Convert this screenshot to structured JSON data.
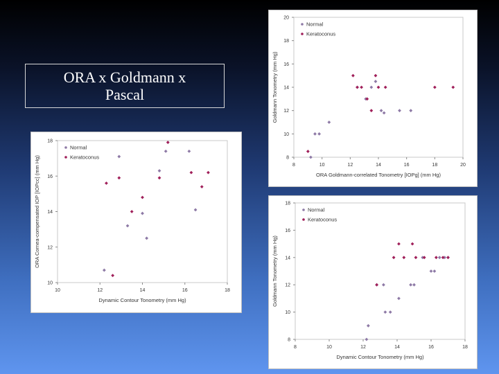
{
  "title": "ORA x Goldmann x Pascal",
  "series_colors": {
    "Normal": "#8e7aa6",
    "Keratoconus": "#a0205a"
  },
  "chart_data": [
    {
      "type": "scatter",
      "xlabel": "ORA Goldmann-correlated Tonometry [IOPg] (mm Hg)",
      "ylabel": "Goldmann Tonometry (mm Hg)",
      "xlim": [
        8,
        20
      ],
      "ylim": [
        8,
        20
      ],
      "xticks": [
        "8",
        "10",
        "12",
        "14",
        "16",
        "18",
        "20"
      ],
      "yticks": [
        "8",
        "10",
        "12",
        "14",
        "16",
        "18",
        "20"
      ],
      "legend": "top-left",
      "grid": false,
      "series": [
        {
          "name": "Normal",
          "points": [
            [
              9.2,
              8.0
            ],
            [
              9.5,
              10.0
            ],
            [
              9.8,
              10.0
            ],
            [
              10.5,
              11.0
            ],
            [
              12.5,
              14.0
            ],
            [
              13.1,
              13.0
            ],
            [
              13.5,
              14.0
            ],
            [
              13.8,
              14.5
            ],
            [
              14.2,
              12.0
            ],
            [
              14.4,
              11.8
            ],
            [
              15.5,
              12.0
            ],
            [
              16.3,
              12.0
            ]
          ]
        },
        {
          "name": "Keratoconus",
          "points": [
            [
              9.0,
              8.5
            ],
            [
              12.2,
              15.0
            ],
            [
              12.5,
              14.0
            ],
            [
              12.8,
              14.0
            ],
            [
              13.2,
              13.0
            ],
            [
              13.5,
              12.0
            ],
            [
              13.8,
              15.0
            ],
            [
              14.0,
              14.0
            ],
            [
              14.5,
              14.0
            ],
            [
              18.0,
              14.0
            ],
            [
              19.3,
              14.0
            ]
          ]
        }
      ]
    },
    {
      "type": "scatter",
      "xlabel": "Dynamic Contour Tonometry (mm Hg)",
      "ylabel": "ORA Cornea-compensated IOP [IOPcc] (mm Hg)",
      "xlim": [
        10,
        18
      ],
      "ylim": [
        10,
        18
      ],
      "xticks": [
        "10",
        "12",
        "14",
        "16",
        "18"
      ],
      "yticks": [
        "10",
        "12",
        "14",
        "16",
        "18"
      ],
      "legend": "top-left",
      "grid": false,
      "series": [
        {
          "name": "Normal",
          "points": [
            [
              12.2,
              10.7
            ],
            [
              12.9,
              17.1
            ],
            [
              13.3,
              13.2
            ],
            [
              14.0,
              13.9
            ],
            [
              14.2,
              12.5
            ],
            [
              14.8,
              16.3
            ],
            [
              15.1,
              17.4
            ],
            [
              16.2,
              17.4
            ],
            [
              16.5,
              14.1
            ]
          ]
        },
        {
          "name": "Keratoconus",
          "points": [
            [
              12.3,
              15.6
            ],
            [
              12.6,
              10.4
            ],
            [
              12.9,
              15.9
            ],
            [
              13.5,
              14.0
            ],
            [
              14.0,
              14.8
            ],
            [
              14.8,
              15.9
            ],
            [
              15.2,
              17.9
            ],
            [
              16.3,
              16.2
            ],
            [
              16.8,
              15.4
            ],
            [
              17.1,
              16.2
            ]
          ]
        }
      ]
    },
    {
      "type": "scatter",
      "xlabel": "Dynamic Contour Tonometry (mm Hg)",
      "ylabel": "Goldmann Tonometry (mm Hg)",
      "xlim": [
        8,
        18
      ],
      "ylim": [
        8,
        18
      ],
      "xticks": [
        "8",
        "10",
        "12",
        "14",
        "16",
        "18"
      ],
      "yticks": [
        "8",
        "10",
        "12",
        "14",
        "16",
        "18"
      ],
      "legend": "top-left",
      "grid": false,
      "series": [
        {
          "name": "Normal",
          "points": [
            [
              12.2,
              8.0
            ],
            [
              12.3,
              9.0
            ],
            [
              12.8,
              12.0
            ],
            [
              13.2,
              12.0
            ],
            [
              13.3,
              10.0
            ],
            [
              13.6,
              10.0
            ],
            [
              14.1,
              11.0
            ],
            [
              14.8,
              12.0
            ],
            [
              15.0,
              12.0
            ],
            [
              15.5,
              14.0
            ],
            [
              16.0,
              13.0
            ],
            [
              16.2,
              13.0
            ],
            [
              16.5,
              14.0
            ],
            [
              16.8,
              14.0
            ],
            [
              17.0,
              14.0
            ]
          ]
        },
        {
          "name": "Keratoconus",
          "points": [
            [
              12.8,
              12.0
            ],
            [
              13.8,
              14.0
            ],
            [
              14.1,
              15.0
            ],
            [
              14.4,
              14.0
            ],
            [
              14.9,
              15.0
            ],
            [
              15.1,
              14.0
            ],
            [
              15.6,
              14.0
            ],
            [
              16.3,
              14.0
            ],
            [
              16.7,
              14.0
            ],
            [
              17.0,
              14.0
            ]
          ]
        }
      ]
    }
  ]
}
